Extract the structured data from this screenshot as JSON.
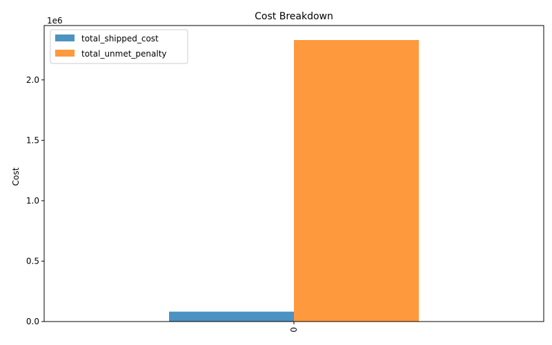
{
  "chart_data": {
    "type": "bar",
    "title": "Cost Breakdown",
    "xlabel": "",
    "ylabel": "Cost",
    "categories": [
      "0"
    ],
    "series": [
      {
        "name": "total_shipped_cost",
        "values": [
          82000
        ],
        "color": "#1f77b4"
      },
      {
        "name": "total_unmet_penalty",
        "values": [
          2330000
        ],
        "color": "#ff7f0e"
      }
    ],
    "ylim": [
      0,
      2450000
    ],
    "yticks": [
      0,
      500000,
      1000000,
      1500000,
      2000000
    ],
    "ytick_labels": [
      "0.0",
      "0.5",
      "1.0",
      "1.5",
      "2.0"
    ],
    "y_offset_label": "1e6",
    "bar_opacity": 0.8,
    "legend_position": "upper-left",
    "grid": false
  }
}
